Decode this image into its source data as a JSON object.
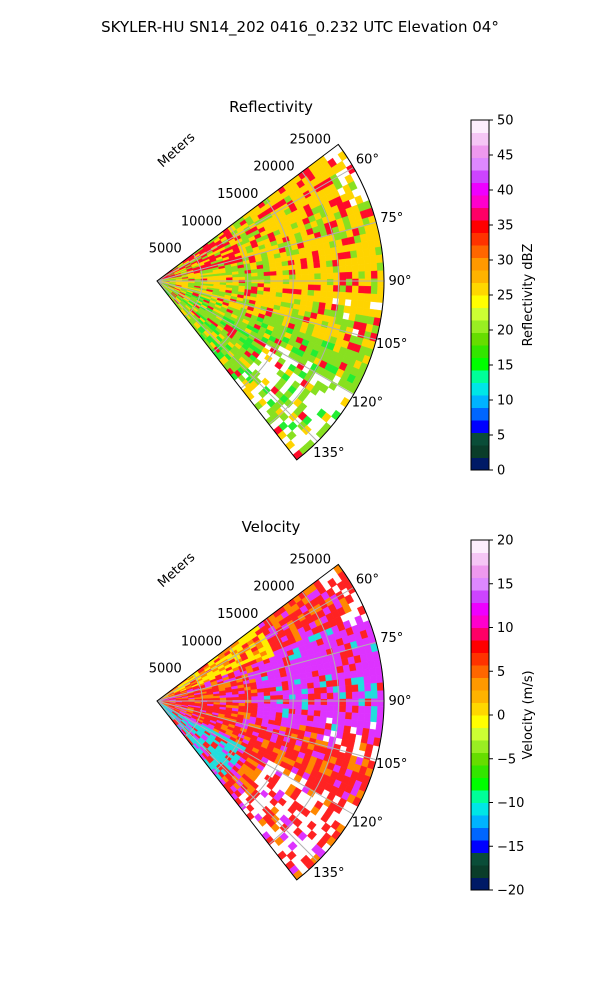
{
  "figure": {
    "suptitle": "SKYLER-HU  SN14_202  0416_0.232 UTC Elevation 04°"
  },
  "chart_data": [
    {
      "type": "heatmap",
      "subtype": "polar-ppi-sector",
      "title": "Reflectivity",
      "radial_label": "Meters",
      "azimuth_range_deg": [
        53,
        142
      ],
      "range_limit_m": 25000,
      "radial_ticks": [
        5000,
        10000,
        15000,
        20000,
        25000
      ],
      "radial_tick_labels": [
        "5000",
        "10000",
        "15000",
        "20000",
        "25000"
      ],
      "azimuth_ticks": [
        60,
        75,
        90,
        105,
        120,
        135
      ],
      "azimuth_tick_labels": [
        "60°",
        "75°",
        "90°",
        "105°",
        "120°",
        "135°"
      ],
      "grid": true,
      "colorbar": {
        "label": "Reflectivity dBZ",
        "vmin": 0,
        "vmax": 50,
        "ticks": [
          0,
          5,
          10,
          15,
          20,
          25,
          30,
          35,
          40,
          45,
          50
        ],
        "tick_labels": [
          "0",
          "5",
          "10",
          "15",
          "20",
          "25",
          "30",
          "35",
          "40",
          "45",
          "50"
        ],
        "colors": [
          "#001a66",
          "#0a3d2a",
          "#0a4d38",
          "#0000ff",
          "#0066ff",
          "#00b3ff",
          "#00e6e6",
          "#00ff99",
          "#00ff00",
          "#33e600",
          "#66dd00",
          "#99ee22",
          "#ccff33",
          "#ffff00",
          "#ffd700",
          "#ffb300",
          "#ff9900",
          "#ff6600",
          "#ff3300",
          "#ff0000",
          "#ff0066",
          "#ff00cc",
          "#ee00ff",
          "#cc44ff",
          "#dd88ff",
          "#ee99ee",
          "#f5c6f5",
          "#fdeefd"
        ]
      },
      "regions": [
        {
          "value": 23,
          "color": "#88e020"
        },
        {
          "value": 28,
          "color": "#ffd400"
        },
        {
          "value": 36,
          "color": "#ff0a2a"
        },
        {
          "value": 16,
          "color": "#22ee33"
        }
      ]
    },
    {
      "type": "heatmap",
      "subtype": "polar-ppi-sector",
      "title": "Velocity",
      "radial_label": "Meters",
      "azimuth_range_deg": [
        53,
        142
      ],
      "range_limit_m": 25000,
      "radial_ticks": [
        5000,
        10000,
        15000,
        20000,
        25000
      ],
      "radial_tick_labels": [
        "5000",
        "10000",
        "15000",
        "20000",
        "25000"
      ],
      "azimuth_ticks": [
        60,
        75,
        90,
        105,
        120,
        135
      ],
      "azimuth_tick_labels": [
        "60°",
        "75°",
        "90°",
        "105°",
        "120°",
        "135°"
      ],
      "grid": true,
      "colorbar": {
        "label": "Velocity (m/s)",
        "vmin": -20,
        "vmax": 20,
        "ticks": [
          -20,
          -15,
          -10,
          -5,
          0,
          5,
          10,
          15,
          20
        ],
        "tick_labels": [
          "−20",
          "−15",
          "−10",
          "−5",
          "0",
          "5",
          "10",
          "15",
          "20"
        ],
        "colors": [
          "#001a66",
          "#0a3d2a",
          "#0a4d38",
          "#0000ff",
          "#0066ff",
          "#00b3ff",
          "#00e6e6",
          "#00ff99",
          "#00ff00",
          "#33e600",
          "#66dd00",
          "#99ee22",
          "#ccff33",
          "#ffff00",
          "#ffd700",
          "#ffb300",
          "#ff9900",
          "#ff6600",
          "#ff3300",
          "#ff0000",
          "#ff0066",
          "#ff00cc",
          "#ee00ff",
          "#cc44ff",
          "#dd88ff",
          "#ee99ee",
          "#f5c6f5",
          "#fdeefd"
        ]
      },
      "regions": [
        {
          "value": 10,
          "color": "#ff2222"
        },
        {
          "value": 14,
          "color": "#dd33ff"
        },
        {
          "value": 7,
          "color": "#ff8800"
        },
        {
          "value": -11,
          "color": "#22dddd"
        },
        {
          "value": 2,
          "color": "#ffee00"
        }
      ]
    }
  ]
}
